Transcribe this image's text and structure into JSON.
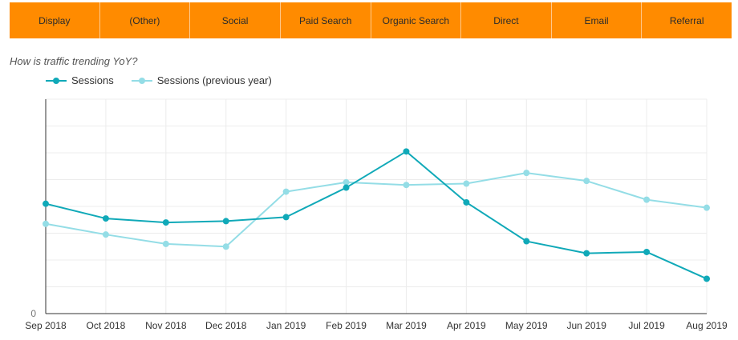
{
  "tabs": [
    "Display",
    "(Other)",
    "Social",
    "Paid Search",
    "Organic Search",
    "Direct",
    "Email",
    "Referral"
  ],
  "subtitle": "How is traffic trending YoY?",
  "colors": {
    "tab_bg": "#ff8b00",
    "sessions": "#10a9b8",
    "sessions_prev": "#94dde6"
  },
  "chart_data": {
    "type": "line",
    "title": "How is traffic trending YoY?",
    "categories": [
      "Sep 2018",
      "Oct 2018",
      "Nov 2018",
      "Dec 2018",
      "Jan 2019",
      "Feb 2019",
      "Mar 2019",
      "Apr 2019",
      "May 2019",
      "Jun 2019",
      "Jul 2019",
      "Aug 2019"
    ],
    "series": [
      {
        "name": "Sessions",
        "values": [
          4.1,
          3.55,
          3.4,
          3.45,
          3.6,
          4.7,
          6.05,
          4.15,
          2.7,
          2.25,
          2.3,
          1.3
        ]
      },
      {
        "name": "Sessions (previous year)",
        "values": [
          3.35,
          2.95,
          2.6,
          2.5,
          4.55,
          4.9,
          4.8,
          4.85,
          5.25,
          4.95,
          4.25,
          3.95
        ]
      }
    ],
    "ylim": [
      0,
      8
    ],
    "yticks": [
      0,
      2,
      4,
      6,
      8
    ],
    "ytick_labels": [
      "0",
      "",
      "",
      "",
      ""
    ],
    "legend": "top-left",
    "grid": true,
    "xlabel": "",
    "ylabel": ""
  }
}
